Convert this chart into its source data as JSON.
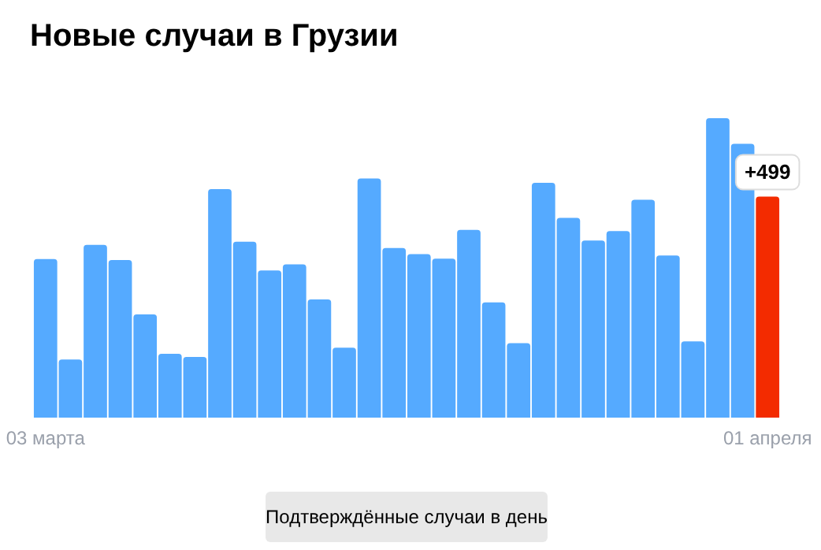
{
  "chart_data": {
    "type": "bar",
    "title": "Новые случаи в Грузии",
    "xlabel": "Подтверждённые случаи в день",
    "categories": [
      "03 марта",
      null,
      null,
      null,
      null,
      null,
      null,
      null,
      null,
      null,
      null,
      null,
      null,
      null,
      null,
      null,
      null,
      null,
      null,
      null,
      null,
      null,
      null,
      null,
      null,
      null,
      null,
      null,
      null,
      "01 апреля"
    ],
    "values": [
      358,
      131,
      390,
      356,
      233,
      144,
      137,
      516,
      397,
      332,
      346,
      267,
      158,
      540,
      383,
      369,
      359,
      424,
      260,
      168,
      530,
      451,
      400,
      421,
      492,
      366,
      172,
      676,
      618,
      499
    ],
    "colors": [
      "#55aaff",
      "#55aaff",
      "#55aaff",
      "#55aaff",
      "#55aaff",
      "#55aaff",
      "#55aaff",
      "#55aaff",
      "#55aaff",
      "#55aaff",
      "#55aaff",
      "#55aaff",
      "#55aaff",
      "#55aaff",
      "#55aaff",
      "#55aaff",
      "#55aaff",
      "#55aaff",
      "#55aaff",
      "#55aaff",
      "#55aaff",
      "#55aaff",
      "#55aaff",
      "#55aaff",
      "#55aaff",
      "#55aaff",
      "#55aaff",
      "#55aaff",
      "#55aaff",
      "#f32b00"
    ],
    "value_labels": [
      null,
      null,
      null,
      null,
      null,
      null,
      null,
      null,
      null,
      null,
      null,
      null,
      null,
      null,
      null,
      null,
      null,
      null,
      null,
      null,
      null,
      null,
      null,
      null,
      null,
      null,
      null,
      null,
      null,
      "+499"
    ],
    "grid": false
  }
}
